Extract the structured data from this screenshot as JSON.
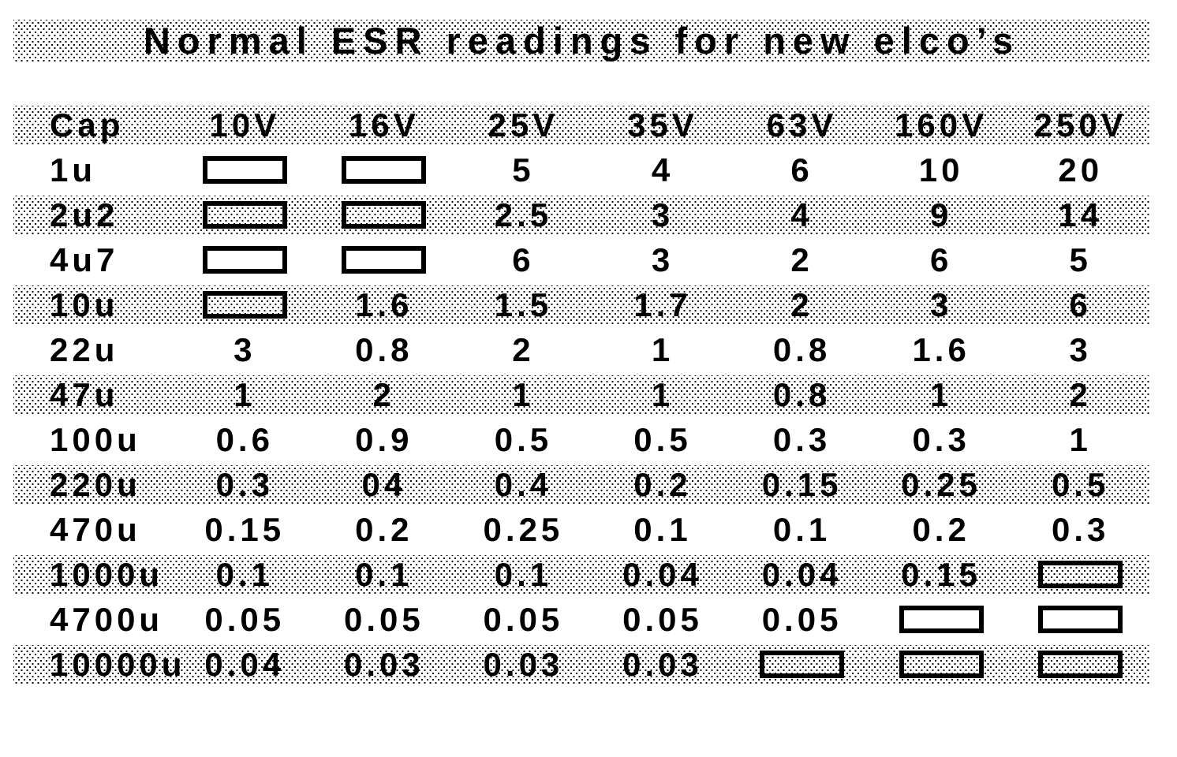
{
  "chart_data": {
    "type": "table",
    "title": "Normal ESR readings for new elco’s",
    "columns": [
      "Cap",
      "10V",
      "16V",
      "25V",
      "35V",
      "63V",
      "160V",
      "250V"
    ],
    "empty_cell_marker": "box",
    "rows": [
      {
        "cap": "1u",
        "values": [
          "box",
          "box",
          "5",
          "4",
          "6",
          "10",
          "20"
        ]
      },
      {
        "cap": "2u2",
        "values": [
          "box",
          "box",
          "2.5",
          "3",
          "4",
          "9",
          "14"
        ]
      },
      {
        "cap": "4u7",
        "values": [
          "box",
          "box",
          "6",
          "3",
          "2",
          "6",
          "5"
        ]
      },
      {
        "cap": "10u",
        "values": [
          "box",
          "1.6",
          "1.5",
          "1.7",
          "2",
          "3",
          "6"
        ]
      },
      {
        "cap": "22u",
        "values": [
          "3",
          "0.8",
          "2",
          "1",
          "0.8",
          "1.6",
          "3"
        ]
      },
      {
        "cap": "47u",
        "values": [
          "1",
          "2",
          "1",
          "1",
          "0.8",
          "1",
          "2"
        ]
      },
      {
        "cap": "100u",
        "values": [
          "0.6",
          "0.9",
          "0.5",
          "0.5",
          "0.3",
          "0.3",
          "1"
        ]
      },
      {
        "cap": "220u",
        "values": [
          "0.3",
          "04",
          "0.4",
          "0.2",
          "0.15",
          "0.25",
          "0.5"
        ]
      },
      {
        "cap": "470u",
        "values": [
          "0.15",
          "0.2",
          "0.25",
          "0.1",
          "0.1",
          "0.2",
          "0.3"
        ]
      },
      {
        "cap": "1000u",
        "values": [
          "0.1",
          "0.1",
          "0.1",
          "0.04",
          "0.04",
          "0.15",
          "box"
        ]
      },
      {
        "cap": "4700u",
        "values": [
          "0.05",
          "0.05",
          "0.05",
          "0.05",
          "0.05",
          "box",
          "box"
        ]
      },
      {
        "cap": "10000u",
        "values": [
          "0.04",
          "0.03",
          "0.03",
          "0.03",
          "box",
          "box",
          "box"
        ]
      }
    ]
  },
  "colors": {
    "text": "#000000",
    "background": "#ffffff",
    "pattern_dots": "#000000"
  }
}
